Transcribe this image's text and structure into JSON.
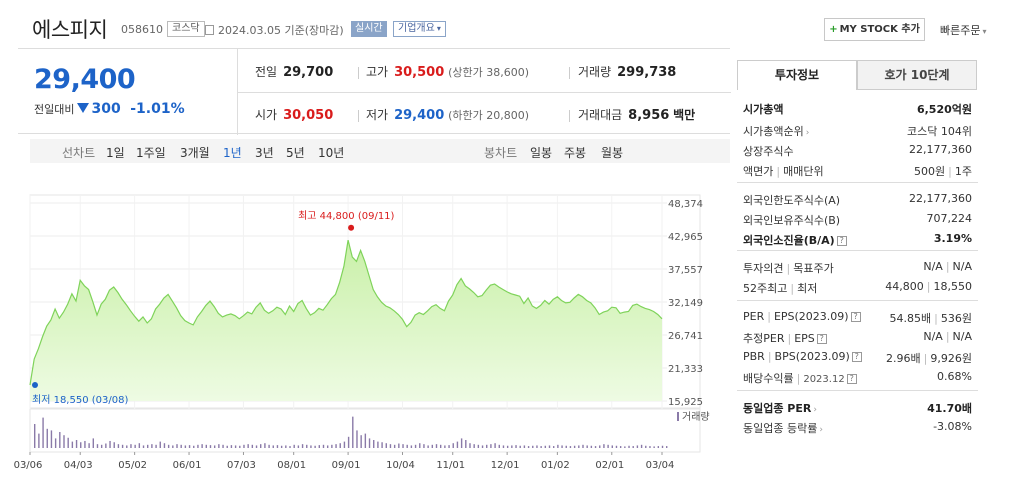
{
  "header": {
    "name": "에스피지",
    "code": "058610",
    "market": "코스닥",
    "date": "2024.03.05 기준(장마감)",
    "live": "실시간",
    "company_info": "기업개요",
    "my_stock": "MY STOCK 추가",
    "quick_order": "빠른주문"
  },
  "price": {
    "current": "29,400",
    "change_label": "전일대비",
    "change": "300",
    "change_pct": "-1.01%"
  },
  "grid": {
    "prev_label": "전일",
    "prev": "29,700",
    "high_label": "고가",
    "high": "30,500",
    "high_sub": "(상한가 38,600)",
    "volume_label": "거래량",
    "volume": "299,738",
    "open_label": "시가",
    "open": "30,050",
    "low_label": "저가",
    "low": "29,400",
    "low_sub": "(하한가 20,800)",
    "amount_label": "거래대금",
    "amount": "8,956",
    "amount_unit": "백만"
  },
  "chart_controls": {
    "line_label": "선차트",
    "line_periods": [
      "1일",
      "1주일",
      "3개월",
      "1년",
      "3년",
      "5년",
      "10년"
    ],
    "selected_period": "1년",
    "candle_label": "봉차트",
    "candle_periods": [
      "일봉",
      "주봉",
      "월봉"
    ]
  },
  "tabs": {
    "invest": "투자정보",
    "hoga": "호가 10단계"
  },
  "invest": {
    "mcap_label": "시가총액",
    "mcap": "6,520억원",
    "mcap_rank_label": "시가총액순위",
    "mcap_rank": "코스닥 104위",
    "shares_label": "상장주식수",
    "shares": "22,177,360",
    "par_label": "액면가",
    "unit_label": "매매단위",
    "par": "500원",
    "unit": "1주",
    "foreign_limit_label": "외국인한도주식수(A)",
    "foreign_limit": "22,177,360",
    "foreign_hold_label": "외국인보유주식수(B)",
    "foreign_hold": "707,224",
    "foreign_ratio_label": "외국인소진율(B/A)",
    "foreign_ratio": "3.19%",
    "opinion_label": "투자의견",
    "target_label": "목표주가",
    "opinion": "N/A",
    "target": "N/A",
    "w52_high_label": "52주최고",
    "w52_low_label": "최저",
    "w52_high": "44,800",
    "w52_low": "18,550",
    "per_label": "PER",
    "eps_label": "EPS(2023.09)",
    "per": "54.85배",
    "eps": "536원",
    "est_per_label": "추정PER",
    "est_eps_label": "EPS",
    "est_per": "N/A",
    "est_eps": "N/A",
    "pbr_label": "PBR",
    "bps_label": "BPS(2023.09)",
    "pbr": "2.96배",
    "bps": "9,926원",
    "div_label": "배당수익률",
    "div_date": "2023.12",
    "div": "0.68%",
    "ind_per_label": "동일업종 PER",
    "ind_per": "41.70배",
    "ind_chg_label": "동일업종 등락률",
    "ind_chg": "-3.08%"
  },
  "colors": {
    "up": "#d91c1c",
    "down": "#1d63c8",
    "area_fill": "#c9f0a8",
    "area_line": "#7fd35a",
    "volume": "#8a7aa8"
  },
  "chart_data": {
    "type": "area",
    "yticks": [
      "48,374",
      "42,965",
      "37,557",
      "32,149",
      "26,741",
      "21,333",
      "15,925"
    ],
    "ylim": [
      15925,
      48374
    ],
    "xticks": [
      "03/06",
      "04/03",
      "05/02",
      "06/01",
      "07/03",
      "08/01",
      "09/01",
      "10/04",
      "11/01",
      "12/01",
      "01/02",
      "02/01",
      "03/04"
    ],
    "high_label": "최고 44,800 (09/11)",
    "low_label": "최저 18,550 (03/08)",
    "volume_label": "거래량",
    "values": [
      18550,
      22800,
      24500,
      26500,
      28200,
      29200,
      31000,
      29500,
      30500,
      31800,
      33500,
      32300,
      35700,
      34800,
      34200,
      32200,
      30000,
      31800,
      32600,
      34100,
      34600,
      33700,
      32600,
      31700,
      30700,
      29800,
      29000,
      29700,
      28700,
      29400,
      31000,
      31800,
      32800,
      33400,
      32300,
      31200,
      29900,
      29100,
      28700,
      28400,
      29700,
      30600,
      31600,
      32300,
      31400,
      30300,
      29700,
      30000,
      30200,
      29900,
      29400,
      29900,
      30500,
      30200,
      31300,
      32000,
      30800,
      30300,
      30700,
      31300,
      31000,
      30100,
      31500,
      30600,
      31900,
      32400,
      31100,
      30000,
      30400,
      31100,
      30800,
      31700,
      32700,
      33400,
      35400,
      38000,
      42300,
      39500,
      38800,
      40600,
      38800,
      36500,
      34200,
      33000,
      32100,
      31500,
      31200,
      30700,
      30100,
      29300,
      28100,
      28800,
      30000,
      30400,
      30100,
      30700,
      31400,
      31700,
      31100,
      30700,
      32300,
      33300,
      35000,
      36000,
      34800,
      34300,
      33700,
      33000,
      33200,
      34100,
      34900,
      35100,
      34600,
      34200,
      33800,
      33500,
      33300,
      33100,
      31900,
      32800,
      31500,
      31100,
      31600,
      32400,
      31800,
      32600,
      33000,
      32400,
      32000,
      32100,
      32800,
      33400,
      33000,
      32400,
      32000,
      31200,
      30100,
      30500,
      30700,
      31300,
      31200,
      30300,
      30500,
      30600,
      31600,
      31800,
      31400,
      31100,
      30900,
      30600,
      30100,
      29400
    ],
    "volume": [
      0.75,
      0.45,
      0.95,
      0.6,
      0.55,
      0.3,
      0.5,
      0.4,
      0.32,
      0.2,
      0.25,
      0.18,
      0.22,
      0.15,
      0.3,
      0.12,
      0.1,
      0.14,
      0.22,
      0.18,
      0.12,
      0.1,
      0.08,
      0.12,
      0.1,
      0.15,
      0.08,
      0.1,
      0.12,
      0.1,
      0.2,
      0.15,
      0.1,
      0.08,
      0.12,
      0.1,
      0.08,
      0.09,
      0.07,
      0.1,
      0.12,
      0.1,
      0.09,
      0.08,
      0.12,
      0.1,
      0.07,
      0.09,
      0.08,
      0.07,
      0.1,
      0.12,
      0.1,
      0.08,
      0.12,
      0.15,
      0.1,
      0.08,
      0.09,
      0.07,
      0.08,
      0.06,
      0.1,
      0.08,
      0.12,
      0.1,
      0.08,
      0.07,
      0.09,
      0.1,
      0.08,
      0.1,
      0.12,
      0.15,
      0.2,
      0.35,
      0.98,
      0.55,
      0.4,
      0.45,
      0.3,
      0.25,
      0.2,
      0.18,
      0.15,
      0.12,
      0.1,
      0.14,
      0.12,
      0.1,
      0.08,
      0.1,
      0.15,
      0.12,
      0.08,
      0.1,
      0.12,
      0.1,
      0.08,
      0.09,
      0.15,
      0.2,
      0.3,
      0.25,
      0.15,
      0.12,
      0.1,
      0.08,
      0.1,
      0.12,
      0.15,
      0.1,
      0.08,
      0.07,
      0.08,
      0.09,
      0.07,
      0.08,
      0.06,
      0.07,
      0.08,
      0.06,
      0.07,
      0.08,
      0.06,
      0.1,
      0.08,
      0.07,
      0.06,
      0.07,
      0.08,
      0.1,
      0.08,
      0.07,
      0.06,
      0.08,
      0.12,
      0.1,
      0.08,
      0.07,
      0.06,
      0.05,
      0.07,
      0.06,
      0.08,
      0.1,
      0.07,
      0.06,
      0.05,
      0.06,
      0.07,
      0.06
    ]
  }
}
